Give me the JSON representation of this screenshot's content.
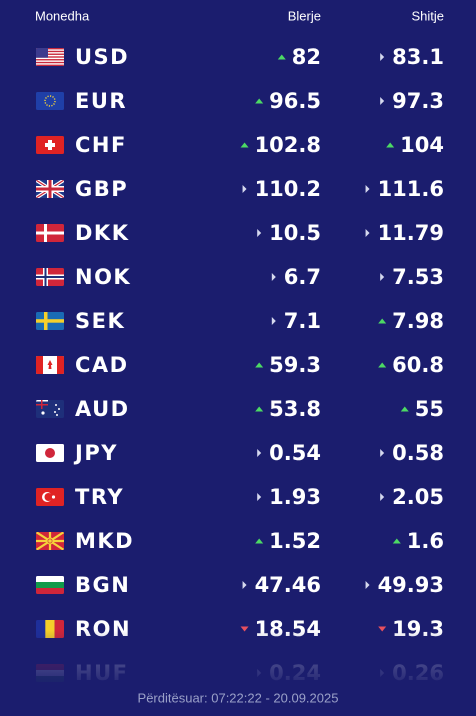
{
  "header": {
    "currency": "Monedha",
    "buy": "Blerje",
    "sell": "Shitje"
  },
  "rows": [
    {
      "code": "USD",
      "buy": 82,
      "sell": 83.1,
      "buy_trend": "up",
      "sell_trend": "flat"
    },
    {
      "code": "EUR",
      "buy": 96.5,
      "sell": 97.3,
      "buy_trend": "up",
      "sell_trend": "flat"
    },
    {
      "code": "CHF",
      "buy": 102.8,
      "sell": 104,
      "buy_trend": "up",
      "sell_trend": "up"
    },
    {
      "code": "GBP",
      "buy": 110.2,
      "sell": 111.6,
      "buy_trend": "flat",
      "sell_trend": "flat"
    },
    {
      "code": "DKK",
      "buy": 10.5,
      "sell": 11.79,
      "buy_trend": "flat",
      "sell_trend": "flat"
    },
    {
      "code": "NOK",
      "buy": 6.7,
      "sell": 7.53,
      "buy_trend": "flat",
      "sell_trend": "flat"
    },
    {
      "code": "SEK",
      "buy": 7.1,
      "sell": 7.98,
      "buy_trend": "flat",
      "sell_trend": "up"
    },
    {
      "code": "CAD",
      "buy": 59.3,
      "sell": 60.8,
      "buy_trend": "up",
      "sell_trend": "up"
    },
    {
      "code": "AUD",
      "buy": 53.8,
      "sell": 55,
      "buy_trend": "up",
      "sell_trend": "up"
    },
    {
      "code": "JPY",
      "buy": 0.54,
      "sell": 0.58,
      "buy_trend": "flat",
      "sell_trend": "flat"
    },
    {
      "code": "TRY",
      "buy": 1.93,
      "sell": 2.05,
      "buy_trend": "flat",
      "sell_trend": "flat"
    },
    {
      "code": "MKD",
      "buy": 1.52,
      "sell": 1.6,
      "buy_trend": "up",
      "sell_trend": "up"
    },
    {
      "code": "BGN",
      "buy": 47.46,
      "sell": 49.93,
      "buy_trend": "flat",
      "sell_trend": "flat"
    },
    {
      "code": "RON",
      "buy": 18.54,
      "sell": 19.3,
      "buy_trend": "down",
      "sell_trend": "down"
    },
    {
      "code": "HUF",
      "buy": 0.24,
      "sell": 0.26,
      "buy_trend": "flat",
      "sell_trend": "flat"
    }
  ],
  "footer": "Përditësuar: 07:22:22 - 20.09.2025"
}
